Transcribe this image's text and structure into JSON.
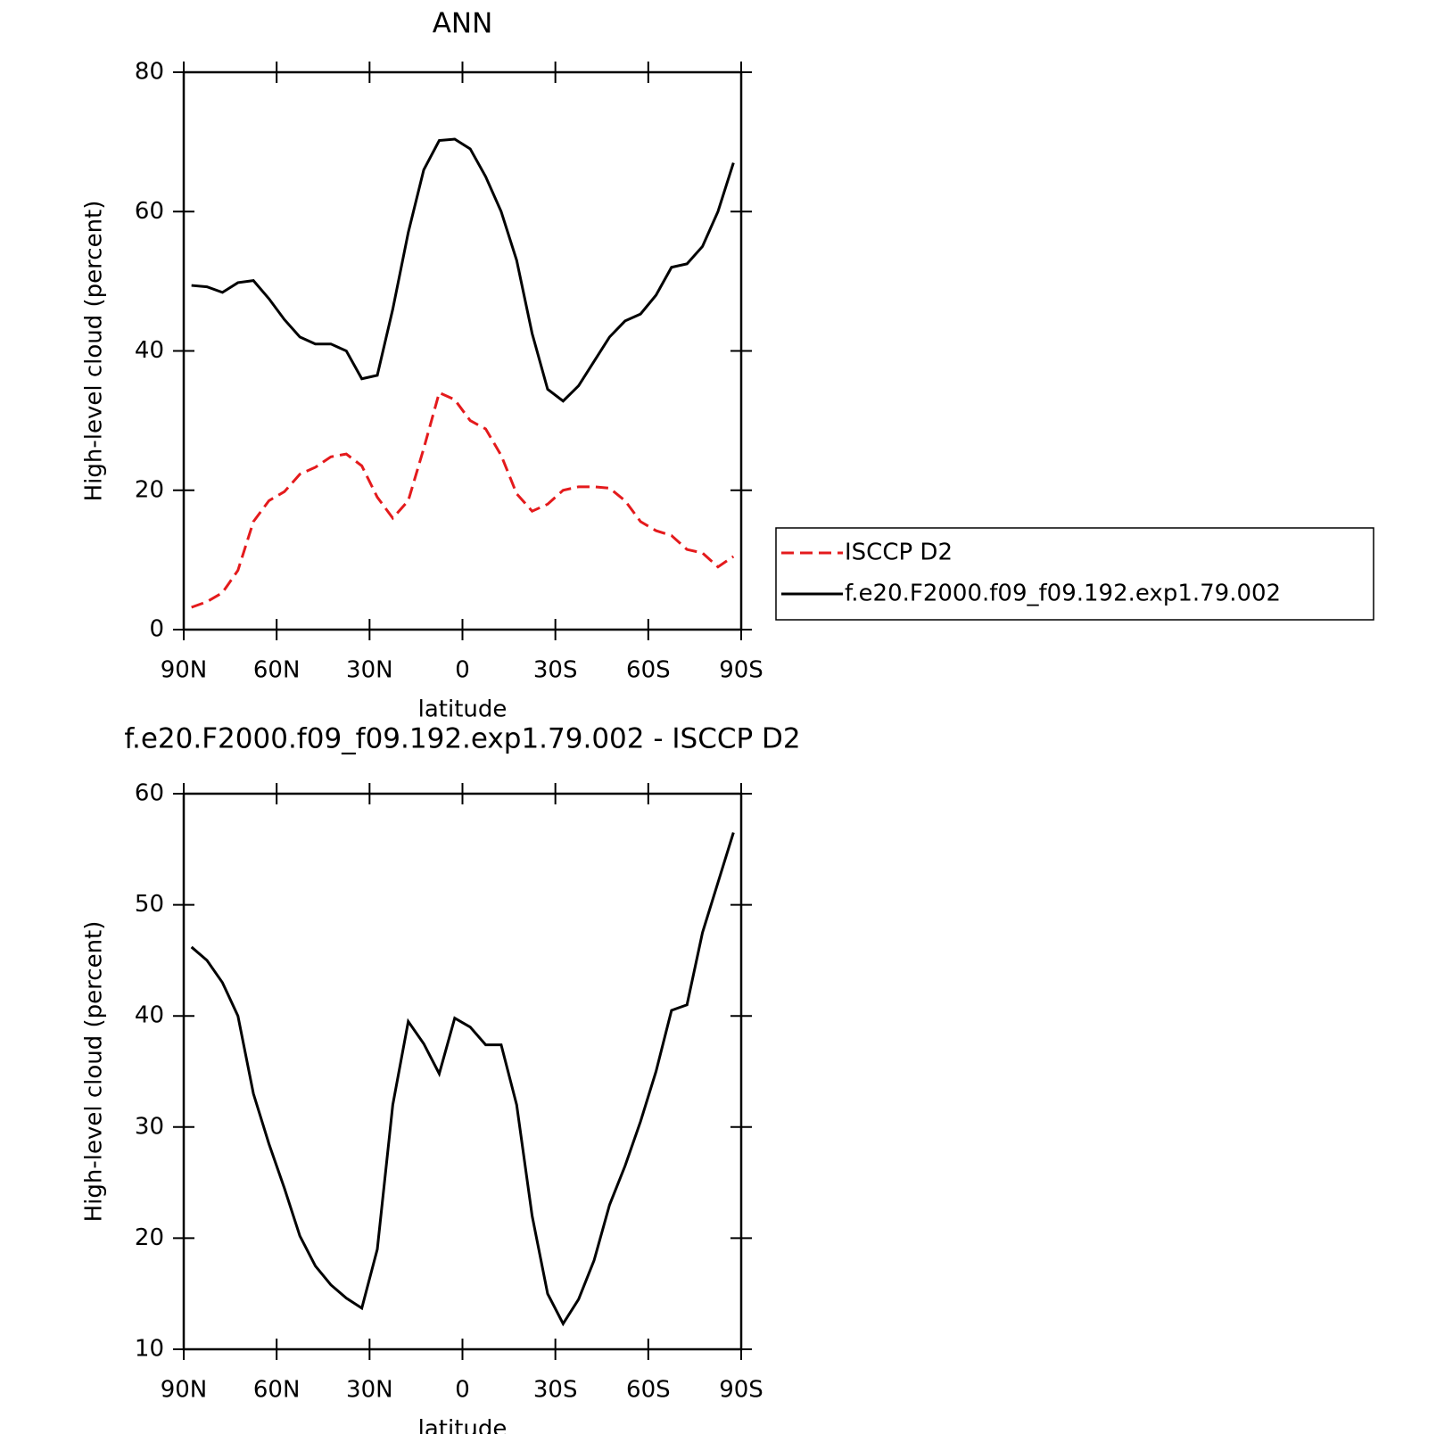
{
  "chart_data": [
    {
      "type": "line",
      "title": "ANN",
      "x_label": "latitude",
      "y_label": "High-level cloud (percent)",
      "x": [
        87.5,
        82.5,
        77.5,
        72.5,
        67.5,
        62.5,
        57.5,
        52.5,
        47.5,
        42.5,
        37.5,
        32.5,
        27.5,
        22.5,
        17.5,
        12.5,
        7.5,
        2.5,
        -2.5,
        -7.5,
        -12.5,
        -17.5,
        -22.5,
        -27.5,
        -32.5,
        -37.5,
        -42.5,
        -47.5,
        -52.5,
        -57.5,
        -62.5,
        -67.5,
        -72.5,
        -77.5,
        -82.5,
        -87.5
      ],
      "xlim": [
        90,
        -90
      ],
      "xticks": [
        {
          "value": 90,
          "label": "90N"
        },
        {
          "value": 60,
          "label": "60N"
        },
        {
          "value": 30,
          "label": "30N"
        },
        0,
        {
          "value": -30,
          "label": "30S"
        },
        {
          "value": -60,
          "label": "60S"
        },
        {
          "value": -90,
          "label": "90S"
        }
      ],
      "ylim": [
        0,
        80
      ],
      "yticks": [
        0,
        20,
        40,
        60,
        80
      ],
      "series": [
        {
          "name": "ISCCP D2",
          "color": "#e41a1c",
          "linestyle": "dashed",
          "values": [
            3.2,
            4.0,
            5.3,
            8.5,
            15.5,
            18.5,
            19.8,
            22.3,
            23.3,
            24.8,
            25.2,
            23.5,
            19.0,
            16.0,
            18.5,
            26,
            34,
            33,
            30,
            28.8,
            25,
            19.5,
            17,
            18,
            20,
            20.5,
            20.5,
            20.3,
            18.5,
            15.5,
            14.2,
            13.5,
            11.5,
            11,
            9,
            10.5
          ]
        },
        {
          "name": "f.e20.F2000.f09_f09.192.exp1.79.002",
          "color": "#000000",
          "linestyle": "solid",
          "values": [
            49.4,
            49.2,
            48.4,
            49.8,
            50.1,
            47.5,
            44.5,
            42.0,
            41.0,
            41.0,
            40.0,
            36,
            36.5,
            46,
            57,
            66,
            70.2,
            70.4,
            69,
            65,
            60,
            53,
            42.5,
            34.5,
            32.8,
            35,
            38.5,
            42,
            44.3,
            45.3,
            48,
            52,
            52.5,
            55,
            60,
            67
          ]
        }
      ]
    },
    {
      "type": "line",
      "title": "f.e20.F2000.f09_f09.192.exp1.79.002 - ISCCP D2",
      "x_label": "latitude",
      "y_label": "High-level cloud (percent)",
      "x": [
        87.5,
        82.5,
        77.5,
        72.5,
        67.5,
        62.5,
        57.5,
        52.5,
        47.5,
        42.5,
        37.5,
        32.5,
        27.5,
        22.5,
        17.5,
        12.5,
        7.5,
        2.5,
        -2.5,
        -7.5,
        -12.5,
        -17.5,
        -22.5,
        -27.5,
        -32.5,
        -37.5,
        -42.5,
        -47.5,
        -52.5,
        -57.5,
        -62.5,
        -67.5,
        -72.5,
        -77.5,
        -82.5,
        -87.5
      ],
      "xlim": [
        90,
        -90
      ],
      "xticks": [
        {
          "value": 90,
          "label": "90N"
        },
        {
          "value": 60,
          "label": "60N"
        },
        {
          "value": 30,
          "label": "30N"
        },
        0,
        {
          "value": -30,
          "label": "30S"
        },
        {
          "value": -60,
          "label": "60S"
        },
        {
          "value": -90,
          "label": "90S"
        }
      ],
      "ylim": [
        10,
        60
      ],
      "yticks": [
        10,
        20,
        30,
        40,
        50,
        60
      ],
      "series": [
        {
          "color": "#000000",
          "linestyle": "solid",
          "values": [
            46.2,
            45,
            43,
            40,
            33,
            28.5,
            24.5,
            20.2,
            17.5,
            15.8,
            14.6,
            13.7,
            19,
            32,
            39.5,
            37.5,
            34.8,
            39.8,
            39,
            37.4,
            37.4,
            32,
            22,
            15,
            12.3,
            14.5,
            18,
            23,
            26.5,
            30.5,
            35,
            40.5,
            41,
            47.5,
            52,
            56.5
          ]
        }
      ]
    }
  ]
}
